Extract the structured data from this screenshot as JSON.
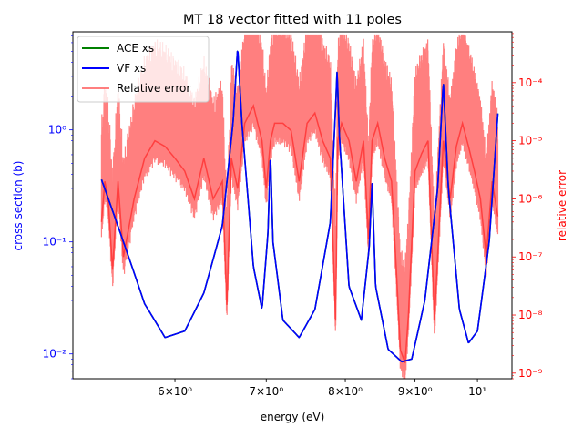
{
  "chart_data": {
    "type": "line",
    "title": "MT 18 vector fitted with 11 poles",
    "xlabel": "energy (eV)",
    "ylabel": "cross section (b)",
    "y2label": "relative error",
    "xscale": "log",
    "yscale": "log",
    "y2scale": "log",
    "xlim": [
      5.05,
      10.6
    ],
    "ylim": [
      0.006,
      7.5
    ],
    "y2lim": [
      8e-10,
      0.00075
    ],
    "x_ticks": [
      {
        "value": 6,
        "label": "6×10⁰"
      },
      {
        "value": 7,
        "label": "7×10⁰"
      },
      {
        "value": 8,
        "label": "8×10⁰"
      },
      {
        "value": 9,
        "label": "9×10⁰"
      },
      {
        "value": 10,
        "label": "10¹"
      }
    ],
    "y_ticks": [
      {
        "value": 0.01,
        "label": "10⁻²"
      },
      {
        "value": 0.1,
        "label": "10⁻¹"
      },
      {
        "value": 1,
        "label": "10⁰"
      }
    ],
    "y2_ticks": [
      {
        "value": 1e-09,
        "label": "10⁻⁹"
      },
      {
        "value": 1e-08,
        "label": "10⁻⁸"
      },
      {
        "value": 1e-07,
        "label": "10⁻⁷"
      },
      {
        "value": 1e-06,
        "label": "10⁻⁶"
      },
      {
        "value": 1e-05,
        "label": "10⁻⁵"
      },
      {
        "value": 0.0001,
        "label": "10⁻⁴"
      }
    ],
    "legend": {
      "placement": "upper-left"
    },
    "resonances": [
      {
        "energy": 6.67,
        "width": 0.032
      },
      {
        "energy": 7.05,
        "width": 0.012
      },
      {
        "energy": 7.89,
        "width": 0.013
      },
      {
        "energy": 8.37,
        "width": 0.011
      },
      {
        "energy": 9.44,
        "width": 0.018
      }
    ],
    "series": [
      {
        "name": "ACE xs",
        "axis": "left",
        "color": "#008000",
        "x": [
          5.3,
          5.5,
          5.7,
          5.9,
          6.1,
          6.3,
          6.5,
          6.62,
          6.67,
          6.72,
          6.85,
          6.95,
          7.02,
          7.05,
          7.08,
          7.2,
          7.4,
          7.6,
          7.8,
          7.87,
          7.89,
          7.92,
          8.05,
          8.22,
          8.33,
          8.37,
          8.42,
          8.6,
          8.8,
          8.95,
          9.15,
          9.35,
          9.44,
          9.52,
          9.7,
          9.85,
          10.0,
          10.2,
          10.35
        ],
        "y": [
          0.36,
          0.1,
          0.028,
          0.014,
          0.016,
          0.035,
          0.14,
          1.2,
          5.5,
          1.1,
          0.06,
          0.025,
          0.12,
          0.62,
          0.1,
          0.02,
          0.014,
          0.025,
          0.15,
          1.6,
          3.4,
          0.9,
          0.04,
          0.02,
          0.09,
          0.34,
          0.04,
          0.011,
          0.0085,
          0.009,
          0.03,
          0.3,
          2.7,
          0.3,
          0.025,
          0.0125,
          0.016,
          0.1,
          1.4
        ]
      },
      {
        "name": "VF xs",
        "axis": "left",
        "color": "#0000ff",
        "x": [
          5.3,
          5.5,
          5.7,
          5.9,
          6.1,
          6.3,
          6.5,
          6.62,
          6.67,
          6.72,
          6.85,
          6.95,
          7.02,
          7.05,
          7.08,
          7.2,
          7.4,
          7.6,
          7.8,
          7.87,
          7.89,
          7.92,
          8.05,
          8.22,
          8.33,
          8.37,
          8.42,
          8.6,
          8.8,
          8.95,
          9.15,
          9.35,
          9.44,
          9.52,
          9.7,
          9.85,
          10.0,
          10.2,
          10.35
        ],
        "y": [
          0.36,
          0.1,
          0.028,
          0.014,
          0.016,
          0.035,
          0.14,
          1.2,
          5.5,
          1.1,
          0.06,
          0.025,
          0.12,
          0.62,
          0.1,
          0.02,
          0.014,
          0.025,
          0.15,
          1.6,
          3.4,
          0.9,
          0.04,
          0.02,
          0.09,
          0.34,
          0.04,
          0.011,
          0.0085,
          0.009,
          0.03,
          0.3,
          2.7,
          0.3,
          0.025,
          0.0125,
          0.016,
          0.1,
          1.4
        ]
      },
      {
        "name": "Relative error",
        "axis": "right",
        "color": "#ff0000",
        "alpha": 0.5,
        "x": [
          5.3,
          5.33,
          5.36,
          5.4,
          5.45,
          5.5,
          5.6,
          5.7,
          5.8,
          5.9,
          6.0,
          6.1,
          6.2,
          6.3,
          6.4,
          6.5,
          6.55,
          6.6,
          6.67,
          6.75,
          6.85,
          6.95,
          7.0,
          7.05,
          7.1,
          7.2,
          7.3,
          7.4,
          7.5,
          7.6,
          7.7,
          7.8,
          7.87,
          7.9,
          7.95,
          8.05,
          8.15,
          8.25,
          8.32,
          8.37,
          8.45,
          8.55,
          8.65,
          8.72,
          8.78,
          8.85,
          8.9,
          9.0,
          9.1,
          9.2,
          9.3,
          9.44,
          9.55,
          9.65,
          9.75,
          9.85,
          9.95,
          10.05,
          10.15,
          10.25,
          10.35
        ],
        "y": [
          4e-07,
          2e-06,
          1e-06,
          6e-08,
          2e-06,
          1e-07,
          1e-06,
          5e-06,
          1e-05,
          8e-06,
          5e-06,
          3e-06,
          1e-06,
          5e-06,
          1e-06,
          2e-06,
          1.5e-08,
          5e-06,
          1.5e-06,
          2e-05,
          4e-05,
          1e-05,
          1.5e-06,
          1e-05,
          2e-05,
          2e-05,
          1.5e-05,
          2e-06,
          2e-05,
          3e-05,
          1e-05,
          5e-06,
          8e-09,
          1e-05,
          2e-05,
          1e-05,
          2e-06,
          1e-05,
          2e-07,
          1e-05,
          2e-05,
          5e-06,
          2e-06,
          6e-08,
          2.5e-09,
          1.5e-09,
          1e-08,
          3e-06,
          6e-06,
          1e-05,
          8e-09,
          1e-05,
          1e-06,
          8e-06,
          2e-05,
          8e-06,
          3e-06,
          1e-06,
          1e-07,
          2e-06,
          5e-07
        ]
      }
    ]
  }
}
